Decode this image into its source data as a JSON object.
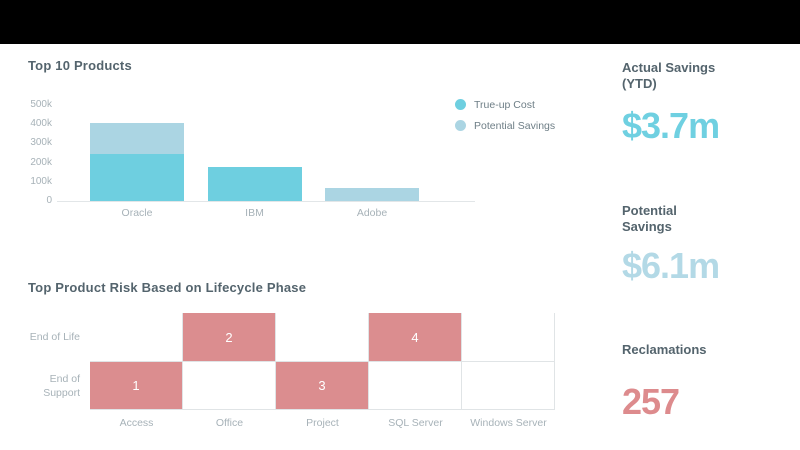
{
  "banner": {
    "color": "#000000"
  },
  "bar_chart_section": {
    "title": "Top 10 Products"
  },
  "heatmap_section": {
    "title": "Top Product Risk Based on Lifecycle Phase",
    "row_label_lines": [
      [
        "End of Life"
      ],
      [
        "End of",
        "Support"
      ]
    ]
  },
  "kpis": [
    {
      "id": "actual-savings-ytd",
      "label_lines": [
        "Actual Savings",
        "(YTD)"
      ],
      "value": "$3.7m",
      "color": "#6fd0e1"
    },
    {
      "id": "potential-savings",
      "label_lines": [
        "Potential",
        "Savings"
      ],
      "value": "$6.1m",
      "color": "#b3d9e6"
    },
    {
      "id": "reclamations",
      "label_lines": [
        "Reclamations"
      ],
      "value": "257",
      "color": "#dd8b8d"
    }
  ],
  "chart_data": [
    {
      "type": "bar",
      "title": "Top 10 Products",
      "categories": [
        "Oracle",
        "IBM",
        "Adobe"
      ],
      "series": [
        {
          "name": "True-up Cost",
          "color": "#6ecfe0",
          "values": [
            245000,
            175000,
            0
          ]
        },
        {
          "name": "Potential Savings",
          "color": "#abd5e3",
          "values": [
            160000,
            0,
            68000
          ]
        }
      ],
      "stacked": true,
      "xlabel": "",
      "ylabel": "",
      "ylim": [
        0,
        500000
      ],
      "y_ticks": [
        "500k",
        "400k",
        "300k",
        "200k",
        "100k",
        "0"
      ],
      "grid": false,
      "legend_position": "right"
    },
    {
      "type": "heatmap",
      "title": "Top Product Risk Based on Lifecycle Phase",
      "rows": [
        "End of Life",
        "End of Support"
      ],
      "columns": [
        "Access",
        "Office",
        "Project",
        "SQL Server",
        "Windows Server"
      ],
      "values": [
        [
          null,
          2,
          null,
          4,
          null
        ],
        [
          1,
          null,
          3,
          null,
          null
        ]
      ],
      "highlighted": [
        [
          false,
          true,
          false,
          true,
          false
        ],
        [
          true,
          false,
          true,
          false,
          false
        ]
      ],
      "highlight_color": "#db8d8f",
      "highlight_text_color": "#ffffff",
      "plain_text_color": "#a3aeb5"
    }
  ]
}
